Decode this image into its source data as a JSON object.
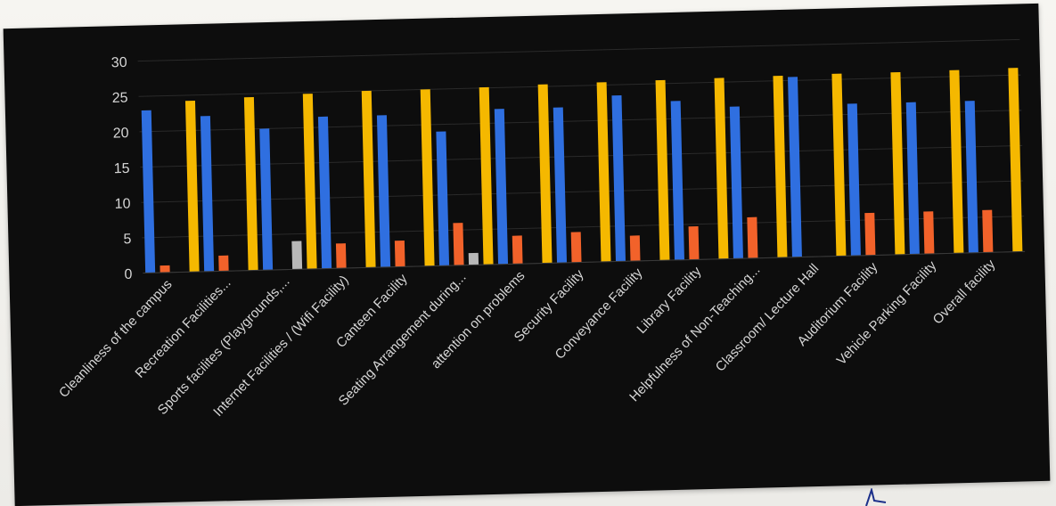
{
  "colors": {
    "background": "#0d0d0d",
    "gridline": "#2a2a2a",
    "text": "#d6d6d6",
    "series": [
      "#2f6fe0",
      "#f2622a",
      "#b8b8b8",
      "#f5b800"
    ]
  },
  "chart_data": {
    "type": "bar",
    "title": "",
    "xlabel": "",
    "ylabel": "",
    "ylim": [
      0,
      30
    ],
    "yticks": [
      0,
      5,
      10,
      15,
      20,
      25,
      30
    ],
    "grid": false,
    "legend": "none",
    "categories": [
      "Cleanliness of the campus",
      "Recreation Facilities...",
      "Sports facilites (Playgrounds,...",
      "Internet Facilities / (Wifi Facility)",
      "Canteen  Facility",
      "Seating Arrangement during...",
      "attention on problems",
      "Security Facility",
      "Conveyance Facility",
      "Library Facility",
      "Helpfulness of Non-Teaching...",
      "Classroom/ Lecture Hall",
      "Auditorium Facility",
      "Vehicle Parking Facility",
      "Overall facility"
    ],
    "series": [
      {
        "values": [
          23,
          22,
          20,
          21.5,
          21.5,
          19,
          22,
          22,
          23.5,
          22.5,
          21.5,
          25.5,
          21.5,
          21.5,
          21.5
        ]
      },
      {
        "values": [
          1,
          2.2,
          0,
          3.5,
          3.7,
          6,
          4,
          4.3,
          3.6,
          4.7,
          5.8,
          0,
          6,
          6,
          6
        ]
      },
      {
        "values": [
          0,
          0,
          4,
          0,
          0,
          1.7,
          0,
          0,
          0,
          0,
          0,
          0,
          0,
          0,
          0
        ]
      },
      {
        "values": [
          24.2,
          24.5,
          24.8,
          25,
          25,
          25.1,
          25.3,
          25.4,
          25.5,
          25.6,
          25.7,
          25.8,
          25.8,
          25.9,
          26
        ]
      }
    ]
  }
}
